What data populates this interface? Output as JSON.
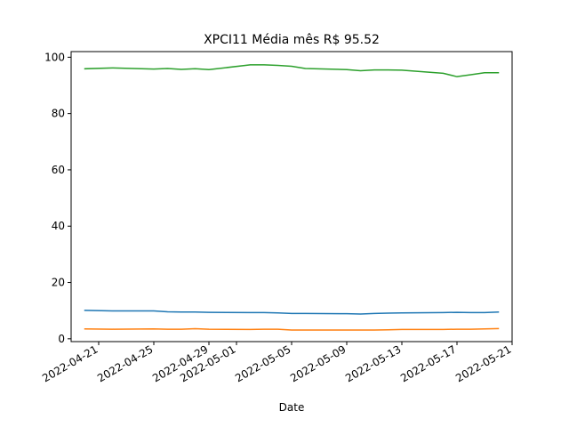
{
  "chart_data": {
    "type": "line",
    "title": "XPCI11 Média mês R$ 95.52",
    "xlabel": "Date",
    "ylabel": "",
    "ylim": [
      -1,
      102
    ],
    "xlim": [
      "2022-04-19",
      "2022-05-21"
    ],
    "yticks": [
      0,
      20,
      40,
      60,
      80,
      100
    ],
    "xticks": [
      "2022-04-21",
      "2022-04-25",
      "2022-04-29",
      "2022-05-01",
      "2022-05-05",
      "2022-05-09",
      "2022-05-13",
      "2022-05-17",
      "2022-05-21"
    ],
    "grid": false,
    "x": [
      "2022-04-20",
      "2022-04-22",
      "2022-04-25",
      "2022-04-26",
      "2022-04-27",
      "2022-04-28",
      "2022-04-29",
      "2022-05-02",
      "2022-05-03",
      "2022-05-04",
      "2022-05-05",
      "2022-05-06",
      "2022-05-09",
      "2022-05-10",
      "2022-05-11",
      "2022-05-12",
      "2022-05-13",
      "2022-05-16",
      "2022-05-17",
      "2022-05-18",
      "2022-05-19",
      "2022-05-20"
    ],
    "series": [
      {
        "color": "#1f77b4",
        "values": [
          10.1,
          9.9,
          9.9,
          9.6,
          9.5,
          9.5,
          9.4,
          9.3,
          9.3,
          9.2,
          9.0,
          9.0,
          8.9,
          8.8,
          9.0,
          9.1,
          9.2,
          9.3,
          9.4,
          9.3,
          9.3,
          9.5
        ]
      },
      {
        "color": "#ff7f0e",
        "values": [
          3.5,
          3.4,
          3.5,
          3.4,
          3.4,
          3.6,
          3.4,
          3.3,
          3.4,
          3.4,
          3.1,
          3.1,
          3.1,
          3.1,
          3.1,
          3.2,
          3.3,
          3.3,
          3.4,
          3.4,
          3.5,
          3.6
        ]
      },
      {
        "color": "#2ca02c",
        "values": [
          95.9,
          96.2,
          95.8,
          96.0,
          95.7,
          95.9,
          95.6,
          97.3,
          97.3,
          97.1,
          96.8,
          96.0,
          95.6,
          95.2,
          95.5,
          95.5,
          95.4,
          94.3,
          93.1,
          93.8,
          94.5,
          94.5
        ]
      }
    ]
  }
}
